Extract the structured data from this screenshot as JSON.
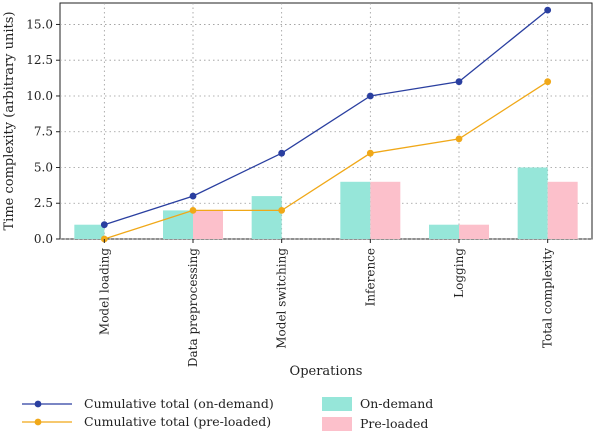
{
  "chart_data": {
    "type": "bar",
    "categories": [
      "Model loading",
      "Data preprocessing",
      "Model switching",
      "Inference",
      "Logging",
      "Total complexity"
    ],
    "xlabel": "Operations",
    "ylabel": "Time complexity (arbitrary units)",
    "ylim": [
      0,
      16.5
    ],
    "yticks": [
      "0.0",
      "2.5",
      "5.0",
      "7.5",
      "10.0",
      "12.5",
      "15.0"
    ],
    "grid": true,
    "bars": [
      {
        "name": "On-demand",
        "color": "#96e6d9",
        "values": [
          1,
          2,
          3,
          4,
          1,
          5
        ]
      },
      {
        "name": "Pre-loaded",
        "color": "#fcc0cb",
        "values": [
          0,
          2,
          0,
          4,
          1,
          4
        ]
      }
    ],
    "lines": [
      {
        "name": "Cumulative total (on-demand)",
        "color": "#2a3fa0",
        "values": [
          1,
          3,
          6,
          10,
          11,
          16
        ]
      },
      {
        "name": "Cumulative total (pre-loaded)",
        "color": "#f0a818",
        "values": [
          0,
          2,
          2,
          6,
          7,
          11
        ]
      }
    ],
    "legend_position": "bottom"
  }
}
